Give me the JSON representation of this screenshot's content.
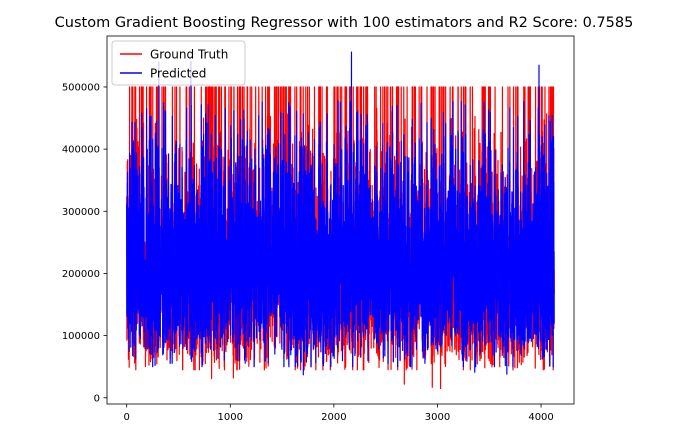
{
  "chart_data": {
    "type": "line",
    "title": "Custom Gradient Boosting Regressor with 100 estimators and R2 Score: 0.7585",
    "xlabel": "",
    "ylabel": "",
    "xlim": [
      -190,
      4318
    ],
    "ylim": [
      -10000,
      582000
    ],
    "x_ticks": [
      0,
      1000,
      2000,
      3000,
      4000
    ],
    "y_ticks": [
      0,
      100000,
      200000,
      300000,
      400000,
      500000
    ],
    "x_tick_labels": [
      "0",
      "1000",
      "2000",
      "3000",
      "4000"
    ],
    "y_tick_labels": [
      "0",
      "100000",
      "200000",
      "300000",
      "400000",
      "500000"
    ],
    "grid": false,
    "legend_position": "upper left",
    "n_points": 4128,
    "series": [
      {
        "name": "Ground Truth",
        "color": "#ff0000",
        "x_range": [
          0,
          4127
        ],
        "value_range": [
          14999,
          500001
        ],
        "cap_value": 500001,
        "approx_mean": 207000
      },
      {
        "name": "Predicted",
        "color": "#0000ff",
        "x_range": [
          0,
          4127
        ],
        "value_range": [
          37000,
          556000
        ],
        "approx_mean": 207000
      }
    ],
    "notable_values": {
      "ground_truth_lows": [
        {
          "x": 820,
          "y": 31000
        },
        {
          "x": 1030,
          "y": 32000
        },
        {
          "x": 2680,
          "y": 22000
        },
        {
          "x": 2950,
          "y": 17000
        },
        {
          "x": 3030,
          "y": 15000
        }
      ],
      "predicted_highs": [
        {
          "x": 310,
          "y": 540000
        },
        {
          "x": 620,
          "y": 541000
        },
        {
          "x": 2170,
          "y": 556000
        },
        {
          "x": 3980,
          "y": 535000
        }
      ],
      "predicted_lows": [
        {
          "x": 1705,
          "y": 37000
        },
        {
          "x": 3360,
          "y": 41000
        },
        {
          "x": 3670,
          "y": 38000
        }
      ]
    }
  }
}
